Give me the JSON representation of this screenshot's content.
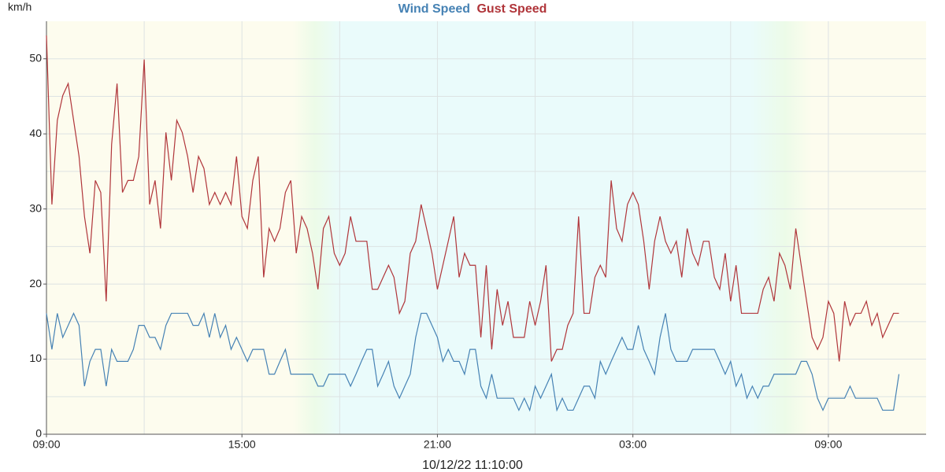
{
  "chart_data": {
    "type": "line",
    "y_label": "km/h",
    "x_label": "10/12/22 11:10:00",
    "x": [
      0,
      10,
      20,
      30,
      40,
      50,
      60,
      70,
      80,
      90,
      100,
      110,
      120,
      130,
      140,
      150,
      160,
      170,
      180,
      190,
      200,
      210,
      220,
      230,
      240,
      250,
      260,
      270,
      280,
      290,
      300,
      310,
      320,
      330,
      340,
      350,
      360,
      370,
      380,
      390,
      400,
      410,
      420,
      430,
      440,
      450,
      460,
      470,
      480,
      490,
      500,
      510,
      520,
      530,
      540,
      550,
      560,
      570,
      580,
      590,
      600,
      610,
      620,
      630,
      640,
      650,
      660,
      670,
      680,
      690,
      700,
      710,
      720,
      730,
      740,
      750,
      760,
      770,
      780,
      790,
      800,
      810,
      820,
      830,
      840,
      850,
      860,
      870,
      880,
      890,
      900,
      910,
      920,
      930,
      940,
      950,
      960,
      970,
      980,
      990,
      1000,
      1010,
      1020,
      1030,
      1040,
      1050,
      1060,
      1070,
      1080,
      1090,
      1100,
      1110,
      1120,
      1130,
      1140,
      1150,
      1160,
      1170,
      1180,
      1190,
      1200,
      1210,
      1220,
      1230,
      1240,
      1250,
      1260,
      1270,
      1280,
      1290,
      1300,
      1310,
      1320,
      1330,
      1340,
      1350,
      1360,
      1370,
      1380,
      1390,
      1400,
      1410,
      1420,
      1430,
      1440,
      1450,
      1460,
      1470,
      1480,
      1490,
      1500,
      1510,
      1520,
      1530,
      1540,
      1550,
      1560,
      1570
    ],
    "series": [
      {
        "name": "Wind Speed",
        "color": "#4682b4",
        "values": [
          16.1,
          11.3,
          16.1,
          12.9,
          14.5,
          16.1,
          14.5,
          6.4,
          9.7,
          11.3,
          11.3,
          6.4,
          11.3,
          9.7,
          9.7,
          9.7,
          11.3,
          14.5,
          14.5,
          12.9,
          12.9,
          11.3,
          14.5,
          16.1,
          16.1,
          16.1,
          16.1,
          14.5,
          14.5,
          16.1,
          12.9,
          16.1,
          12.9,
          14.5,
          11.3,
          12.9,
          11.3,
          9.7,
          11.3,
          11.3,
          11.3,
          8.0,
          8.0,
          9.7,
          11.3,
          8.0,
          8.0,
          8.0,
          8.0,
          8.0,
          6.4,
          6.4,
          8.0,
          8.0,
          8.0,
          8.0,
          6.4,
          8.0,
          9.7,
          11.3,
          11.3,
          6.4,
          8.0,
          9.7,
          6.4,
          4.8,
          6.4,
          8.0,
          12.9,
          16.1,
          16.1,
          14.5,
          12.9,
          9.7,
          11.3,
          9.7,
          9.7,
          8.0,
          11.3,
          11.3,
          6.4,
          4.8,
          8.0,
          4.8,
          4.8,
          4.8,
          4.8,
          3.2,
          4.8,
          3.2,
          6.4,
          4.8,
          6.4,
          8.0,
          3.2,
          4.8,
          3.2,
          3.2,
          4.8,
          6.4,
          6.4,
          4.8,
          9.7,
          8.0,
          9.7,
          11.3,
          12.9,
          11.3,
          11.3,
          14.5,
          11.3,
          9.7,
          8.0,
          12.9,
          16.1,
          11.3,
          9.7,
          9.7,
          9.7,
          11.3,
          11.3,
          11.3,
          11.3,
          11.3,
          9.7,
          8.0,
          9.7,
          6.4,
          8.0,
          4.8,
          6.4,
          4.8,
          6.4,
          6.4,
          8.0,
          8.0,
          8.0,
          8.0,
          8.0,
          9.7,
          9.7,
          8.0,
          4.8,
          3.2,
          4.8,
          4.8,
          4.8,
          4.8,
          6.4,
          4.8,
          4.8,
          4.8,
          4.8,
          4.8,
          3.2,
          3.2,
          3.2,
          8.0
        ]
      },
      {
        "name": "Gust Speed",
        "color": "#b0353a",
        "values": [
          53.1,
          30.6,
          41.8,
          45.1,
          46.7,
          41.8,
          37.0,
          29.0,
          24.1,
          33.8,
          32.2,
          17.7,
          38.6,
          46.7,
          32.2,
          33.8,
          33.8,
          37.0,
          49.9,
          30.6,
          33.8,
          27.4,
          40.2,
          33.8,
          41.8,
          40.2,
          37.0,
          32.2,
          37.0,
          35.4,
          30.6,
          32.2,
          30.6,
          32.2,
          30.6,
          37.0,
          29.0,
          27.4,
          33.8,
          37.0,
          20.9,
          27.4,
          25.7,
          27.4,
          32.2,
          33.8,
          24.1,
          29.0,
          27.4,
          24.1,
          19.3,
          27.4,
          29.0,
          24.1,
          22.5,
          24.1,
          29.0,
          25.7,
          25.7,
          25.7,
          19.3,
          19.3,
          20.9,
          22.5,
          20.9,
          16.1,
          17.7,
          24.1,
          25.7,
          30.6,
          27.4,
          24.1,
          19.3,
          22.5,
          25.7,
          29.0,
          20.9,
          24.1,
          22.5,
          22.5,
          12.9,
          22.5,
          11.3,
          19.3,
          14.5,
          17.7,
          12.9,
          12.9,
          12.9,
          17.7,
          14.5,
          17.7,
          22.5,
          9.7,
          11.3,
          11.3,
          14.5,
          16.1,
          29.0,
          16.1,
          16.1,
          20.9,
          22.5,
          20.9,
          33.8,
          27.4,
          25.7,
          30.6,
          32.2,
          30.6,
          25.7,
          19.3,
          25.7,
          29.0,
          25.7,
          24.1,
          25.7,
          20.9,
          27.4,
          24.1,
          22.5,
          25.7,
          25.7,
          20.9,
          19.3,
          24.1,
          17.7,
          22.5,
          16.1,
          16.1,
          16.1,
          16.1,
          19.3,
          20.9,
          17.7,
          24.1,
          22.5,
          19.3,
          27.4,
          22.5,
          17.7,
          12.9,
          11.3,
          12.9,
          17.7,
          16.1,
          9.7,
          17.7,
          14.5,
          16.1,
          16.1,
          17.7,
          14.5,
          16.1,
          12.9,
          14.5,
          16.1,
          16.1
        ]
      }
    ],
    "xlim": [
      0,
      1620
    ],
    "xticks": [
      {
        "value": 0,
        "label": "09:00"
      },
      {
        "value": 360,
        "label": "15:00"
      },
      {
        "value": 720,
        "label": "21:00"
      },
      {
        "value": 1080,
        "label": "03:00"
      },
      {
        "value": 1440,
        "label": "09:00"
      }
    ],
    "minor_xticks": [
      180,
      540,
      900,
      1260
    ],
    "ylim": [
      0,
      55
    ],
    "yticks": [
      0,
      10,
      20,
      30,
      40,
      50
    ],
    "minor_yticks": [
      5,
      15,
      25,
      35,
      45
    ],
    "grid": true
  }
}
